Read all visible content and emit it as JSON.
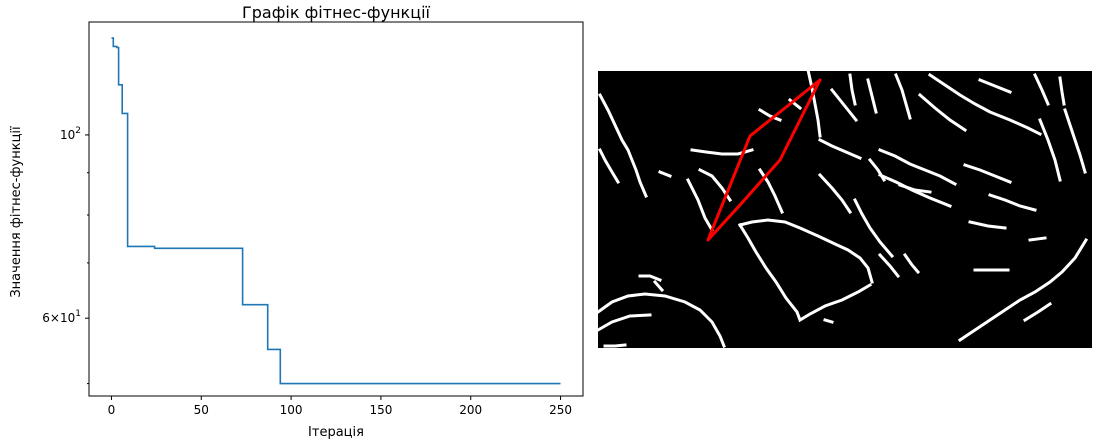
{
  "chart_data": [
    {
      "type": "line",
      "title": "Графік фітнес-функції",
      "xlabel": "Ітерація",
      "ylabel": "Значення фітнес-функції",
      "xlim": [
        -12.5,
        262.5
      ],
      "ylim": [
        48.3,
        137
      ],
      "yscale": "log",
      "x_ticks": [
        0,
        50,
        100,
        150,
        200,
        250
      ],
      "y_ticks": [
        {
          "value": 100,
          "label": "10^2"
        },
        {
          "value": 60,
          "label": "6×10^1"
        }
      ],
      "grid": false,
      "series": [
        {
          "color": "#1f77b4",
          "steps": [
            {
              "x": 0,
              "y": 131.0
            },
            {
              "x": 1,
              "y": 128.0
            },
            {
              "x": 3,
              "y": 127.6
            },
            {
              "x": 4,
              "y": 115.0
            },
            {
              "x": 5,
              "y": 115.0
            },
            {
              "x": 6,
              "y": 106.2
            },
            {
              "x": 8,
              "y": 106.2
            },
            {
              "x": 9,
              "y": 73.3
            },
            {
              "x": 23,
              "y": 73.3
            },
            {
              "x": 24,
              "y": 72.9
            },
            {
              "x": 72,
              "y": 72.9
            },
            {
              "x": 73,
              "y": 62.3
            },
            {
              "x": 86,
              "y": 62.3
            },
            {
              "x": 87,
              "y": 55.0
            },
            {
              "x": 93,
              "y": 55.0
            },
            {
              "x": 94,
              "y": 50.0
            },
            {
              "x": 250,
              "y": 50.0
            }
          ]
        }
      ]
    },
    {
      "type": "image",
      "image_kind": "binary-edge-map",
      "background": "#000000",
      "edge_color": "#ffffff",
      "overlay": {
        "shape": "polygon",
        "color": "#ff0000"
      }
    }
  ]
}
